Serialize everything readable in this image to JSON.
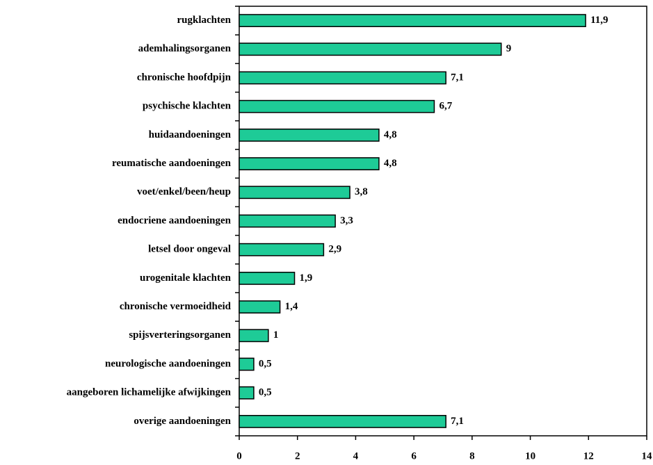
{
  "chart_data": {
    "type": "bar",
    "orientation": "horizontal",
    "categories": [
      "rugklachten",
      "ademhalingsorganen",
      "chronische hoofdpijn",
      "psychische klachten",
      "huidaandoeningen",
      "reumatische aandoeningen",
      "voet/enkel/been/heup",
      "endocriene aandoeningen",
      "letsel door ongeval",
      "urogenitale klachten",
      "chronische vermoeidheid",
      "spijsverteringsorganen",
      "neurologische aandoeningen",
      "aangeboren lichamelijke afwijkingen",
      "overige aandoeningen"
    ],
    "values": [
      11.9,
      9,
      7.1,
      6.7,
      4.8,
      4.8,
      3.8,
      3.3,
      2.9,
      1.9,
      1.4,
      1,
      0.5,
      0.5,
      7.1
    ],
    "value_labels": [
      "11,9",
      "9",
      "7,1",
      "6,7",
      "4,8",
      "4,8",
      "3,8",
      "3,3",
      "2,9",
      "1,9",
      "1,4",
      "1",
      "0,5",
      "0,5",
      "7,1"
    ],
    "color": "#1ecb97",
    "xlim": [
      0,
      14
    ],
    "xticks": [
      0,
      2,
      4,
      6,
      8,
      10,
      12,
      14
    ],
    "grid": false
  }
}
